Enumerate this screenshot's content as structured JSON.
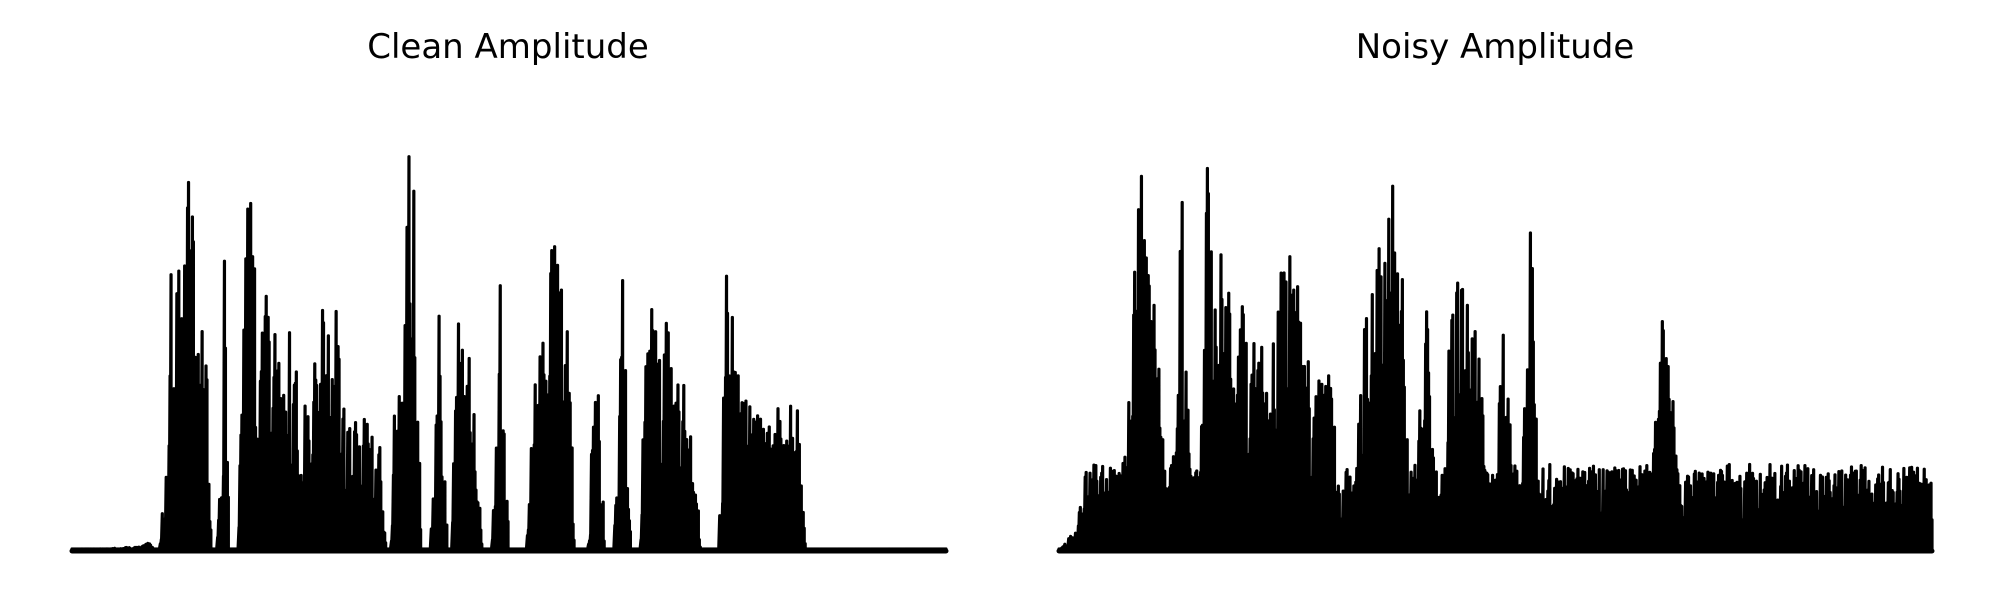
{
  "figure": {
    "background": "#ffffff",
    "line_color": "#000000"
  },
  "chart_data": [
    {
      "type": "line",
      "title": "Clean Amplitude",
      "xlabel": "",
      "ylabel": "",
      "axes_visible": false,
      "grid": false,
      "ylim": [
        0,
        1
      ],
      "envelope": {
        "x": [
          0,
          0.08,
          0.09,
          0.095,
          0.1,
          0.11,
          0.112,
          0.12,
          0.13,
          0.135,
          0.14,
          0.145,
          0.15,
          0.155,
          0.16,
          0.165,
          0.17,
          0.175,
          0.18,
          0.19,
          0.2,
          0.21,
          0.22,
          0.23,
          0.24,
          0.245,
          0.25,
          0.255,
          0.26,
          0.265,
          0.27,
          0.275,
          0.28,
          0.285,
          0.29,
          0.295,
          0.3,
          0.31,
          0.32,
          0.33,
          0.34,
          0.35,
          0.355,
          0.36,
          0.365,
          0.37,
          0.375,
          0.38,
          0.385,
          0.39,
          0.395,
          0.4,
          0.41,
          0.42,
          0.43,
          0.435,
          0.44,
          0.445,
          0.45,
          0.455,
          0.46,
          0.47,
          0.48,
          0.49,
          0.5,
          0.51,
          0.52,
          0.53,
          0.54,
          0.545,
          0.55,
          0.555,
          0.56,
          0.565,
          0.57,
          0.575,
          0.58,
          0.59,
          0.6,
          0.61,
          0.62,
          0.63,
          0.64,
          0.65,
          0.655,
          0.66,
          0.665,
          0.67,
          0.68,
          0.69,
          0.7,
          0.71,
          0.72,
          0.73,
          0.74,
          0.75,
          0.76,
          0.77,
          0.78,
          0.79,
          0.8,
          0.81,
          0.82,
          0.83,
          0.84,
          0.85,
          0.86,
          0.87,
          0.88,
          0.9,
          0.93,
          0.96,
          1.0
        ],
        "y": [
          0.0,
          0.01,
          0.02,
          0.0,
          0.0,
          0.25,
          0.65,
          0.6,
          0.7,
          0.9,
          0.72,
          0.85,
          0.5,
          0.4,
          0.0,
          0.0,
          0.2,
          0.75,
          0.0,
          0.0,
          0.87,
          0.7,
          0.65,
          0.5,
          0.4,
          0.3,
          0.55,
          0.45,
          0.3,
          0.45,
          0.35,
          0.25,
          0.55,
          0.62,
          0.55,
          0.45,
          0.72,
          0.35,
          0.32,
          0.28,
          0.3,
          0.37,
          0.1,
          0.0,
          0.0,
          0.4,
          0.47,
          0.6,
          1.0,
          0.9,
          0.45,
          0.0,
          0.0,
          0.53,
          0.0,
          0.0,
          0.6,
          0.45,
          0.5,
          0.45,
          0.36,
          0.0,
          0.0,
          0.61,
          0.0,
          0.0,
          0.0,
          0.5,
          0.45,
          0.5,
          0.82,
          0.65,
          0.62,
          0.55,
          0.45,
          0.0,
          0.0,
          0.0,
          0.5,
          0.0,
          0.0,
          0.62,
          0.0,
          0.0,
          0.55,
          0.6,
          0.68,
          0.7,
          0.55,
          0.4,
          0.37,
          0.32,
          0.0,
          0.0,
          0.0,
          0.7,
          0.4,
          0.36,
          0.33,
          0.3,
          0.3,
          0.32,
          0.35,
          0.31,
          0.0,
          0.0,
          0.0,
          0.0,
          0.0,
          0.0,
          0.0,
          0.0,
          0.0
        ]
      }
    },
    {
      "type": "line",
      "title": "Noisy Amplitude",
      "xlabel": "",
      "ylabel": "",
      "axes_visible": false,
      "grid": false,
      "ylim": [
        0,
        1
      ],
      "envelope": {
        "x": [
          0,
          0.02,
          0.03,
          0.04,
          0.05,
          0.06,
          0.07,
          0.08,
          0.09,
          0.095,
          0.1,
          0.11,
          0.12,
          0.13,
          0.14,
          0.15,
          0.16,
          0.17,
          0.18,
          0.19,
          0.2,
          0.21,
          0.22,
          0.23,
          0.24,
          0.25,
          0.26,
          0.27,
          0.28,
          0.29,
          0.3,
          0.31,
          0.32,
          0.33,
          0.34,
          0.35,
          0.36,
          0.37,
          0.38,
          0.39,
          0.4,
          0.41,
          0.42,
          0.43,
          0.44,
          0.45,
          0.46,
          0.47,
          0.48,
          0.49,
          0.5,
          0.51,
          0.52,
          0.53,
          0.54,
          0.55,
          0.56,
          0.57,
          0.58,
          0.59,
          0.6,
          0.61,
          0.62,
          0.63,
          0.64,
          0.65,
          0.66,
          0.67,
          0.68,
          0.69,
          0.7,
          0.71,
          0.72,
          0.73,
          0.74,
          0.75,
          0.76,
          0.77,
          0.78,
          0.79,
          0.8,
          0.81,
          0.82,
          0.83,
          0.84,
          0.85,
          0.86,
          0.87,
          0.88,
          0.89,
          0.9,
          0.92,
          0.95,
          1.0
        ],
        "y": [
          0.0,
          0.05,
          0.18,
          0.18,
          0.18,
          0.18,
          0.18,
          0.42,
          0.75,
          0.9,
          0.82,
          0.62,
          0.2,
          0.18,
          0.85,
          0.18,
          0.18,
          0.92,
          0.72,
          0.65,
          0.48,
          0.55,
          0.4,
          0.65,
          0.35,
          0.55,
          0.75,
          0.62,
          0.5,
          0.45,
          0.38,
          0.45,
          0.18,
          0.18,
          0.18,
          0.52,
          0.6,
          0.7,
          0.82,
          1.0,
          0.18,
          0.18,
          0.6,
          0.18,
          0.18,
          0.58,
          0.6,
          0.55,
          0.52,
          0.18,
          0.18,
          0.62,
          0.18,
          0.18,
          0.8,
          0.18,
          0.18,
          0.18,
          0.18,
          0.18,
          0.18,
          0.18,
          0.18,
          0.18,
          0.18,
          0.18,
          0.18,
          0.18,
          0.18,
          0.6,
          0.62,
          0.18,
          0.18,
          0.18,
          0.18,
          0.18,
          0.18,
          0.18,
          0.18,
          0.18,
          0.18,
          0.18,
          0.18,
          0.18,
          0.18,
          0.18,
          0.18,
          0.18,
          0.18,
          0.18,
          0.18,
          0.18,
          0.18,
          0.18
        ]
      }
    }
  ]
}
